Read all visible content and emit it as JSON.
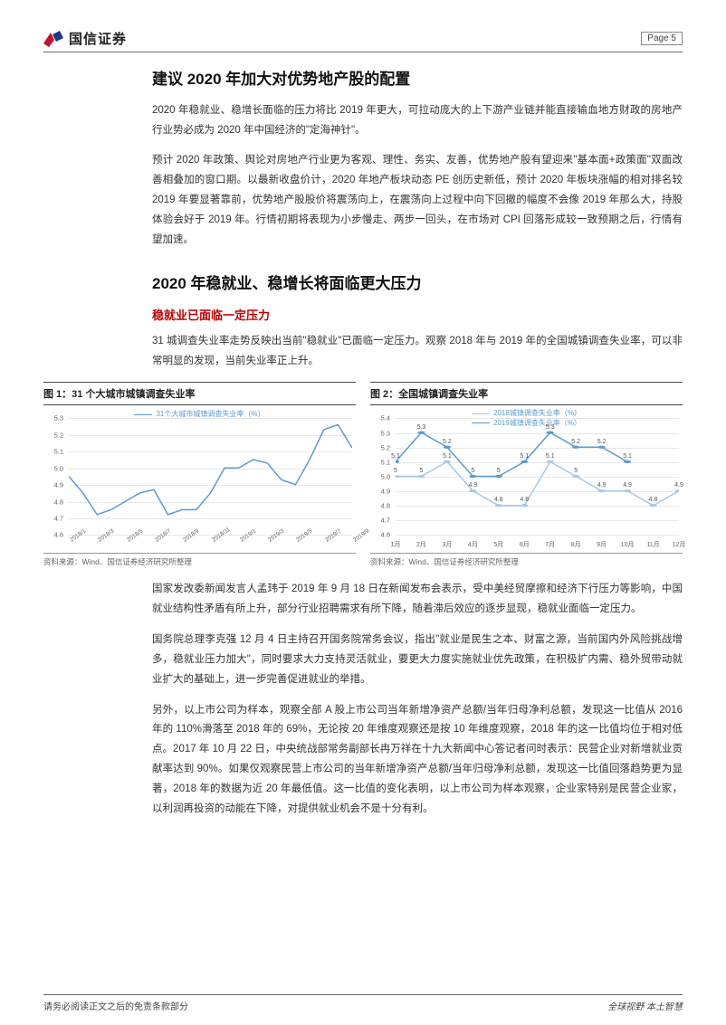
{
  "header": {
    "brand": "国信证券",
    "page_label": "Page  5"
  },
  "section1": {
    "title": "建议 2020 年加大对优势地产股的配置",
    "para1": "2020 年稳就业、稳增长面临的压力将比 2019 年更大，可拉动庞大的上下游产业链并能直接输血地方财政的房地产行业势必成为 2020 年中国经济的\"定海神针\"。",
    "para2": "预计 2020 年政策、舆论对房地产行业更为客观、理性、务实、友善，优势地产股有望迎来\"基本面+政策面\"双面改善相叠加的窗口期。以最新收盘价计，2020 年地产板块动态 PE 创历史新低，预计 2020 年板块涨幅的相对排名较 2019 年要显著靠前，优势地产股股价将震荡向上，在震荡向上过程中向下回撤的幅度不会像 2019 年那么大，持股体验会好于 2019 年。行情初期将表现为小步慢走、两步一回头，在市场对 CPI 回落形成较一致预期之后，行情有望加速。"
  },
  "section2": {
    "title": "2020 年稳就业、稳增长将面临更大压力",
    "subtitle": "稳就业已面临一定压力",
    "para1": "31 城调查失业率走势反映出当前\"稳就业\"已面临一定压力。观察 2018 年与 2019 年的全国城镇调查失业率，可以非常明显的发现，当前失业率正上升。"
  },
  "chart1": {
    "title": "图 1：31 个大城市城镇调查失业率",
    "legend": "31个大城市城镇调查失业率（%）",
    "source": "资料来源：Wind、国信证券经济研究所整理",
    "y_ticks": [
      "4.6",
      "4.7",
      "4.8",
      "4.9",
      "5.0",
      "5.1",
      "5.2",
      "5.3"
    ],
    "ylim": [
      4.6,
      5.3
    ],
    "x_labels": [
      "2018/1",
      "2018/3",
      "2018/5",
      "2018/7",
      "2018/9",
      "2018/11",
      "2019/1",
      "2019/3",
      "2019/5",
      "2019/7",
      "2019/9"
    ],
    "line_color": "#5b9bd5",
    "grid_color": "#e8e8e8",
    "values": [
      4.95,
      4.85,
      4.72,
      4.75,
      4.8,
      4.85,
      4.87,
      4.72,
      4.75,
      4.75,
      4.85,
      5.0,
      5.0,
      5.05,
      5.03,
      4.93,
      4.9,
      5.05,
      5.23,
      5.26,
      5.12
    ]
  },
  "chart2": {
    "title": "图 2：全国城镇调查失业率",
    "legend1": "2018城镇调查失业率（%）",
    "legend2": "2019城镇调查失业率（%）",
    "source": "资料来源：Wind、国信证券经济研究所整理",
    "y_ticks": [
      "4.6",
      "4.7",
      "4.8",
      "4.9",
      "5.0",
      "5.1",
      "5.2",
      "5.3",
      "5.4"
    ],
    "ylim": [
      4.6,
      5.4
    ],
    "x_labels": [
      "1月",
      "2月",
      "3月",
      "4月",
      "5月",
      "6月",
      "7月",
      "8月",
      "9月",
      "10月",
      "11月",
      "12月"
    ],
    "color_2018": "#a6c8e8",
    "color_2019": "#5b9bd5",
    "grid_color": "#e8e8e8",
    "series_2018": {
      "values": [
        5.0,
        5.0,
        5.1,
        4.9,
        4.8,
        4.8,
        5.1,
        5.0,
        4.9,
        4.9,
        4.8,
        4.9
      ],
      "labels": [
        "5",
        "5",
        "5.1",
        "4.9",
        "4.8",
        "4.8",
        "5.1",
        "5",
        "4.9",
        "4.9",
        "4.8",
        "4.9"
      ]
    },
    "series_2019": {
      "values": [
        5.1,
        5.3,
        5.2,
        5.0,
        5.0,
        5.1,
        5.3,
        5.2,
        5.2,
        5.1,
        null,
        null
      ],
      "labels": [
        "5.1",
        "5.3",
        "5.2",
        "5",
        "5",
        "5.1",
        "5.3",
        "5.2",
        "5.2",
        "5.1",
        "",
        ""
      ]
    }
  },
  "section3": {
    "para1": "国家发改委新闻发言人孟玮于 2019 年 9 月 18 日在新闻发布会表示，受中美经贸摩擦和经济下行压力等影响，中国就业结构性矛盾有所上升，部分行业招聘需求有所下降，随着滞后效应的逐步显现，稳就业面临一定压力。",
    "para2": "国务院总理李克强 12 月 4 日主持召开国务院常务会议，指出\"就业是民生之本、财富之源，当前国内外风险挑战增多，稳就业压力加大\"，同时要求大力支持灵活就业，要更大力度实施就业优先政策，在积极扩内需、稳外贸带动就业扩大的基础上，进一步完善促进就业的举措。",
    "para3": "另外，以上市公司为样本，观察全部 A 股上市公司当年新增净资产总额/当年归母净利总额，发现这一比值从 2016 年的 110%滑落至 2018 年的 69%，无论按 20 年维度观察还是按 10 年维度观察，2018 年的这一比值均位于相对低点。2017 年 10 月 22 日，中央统战部常务副部长冉万祥在十九大新闻中心答记者问时表示：民营企业对新增就业贡献率达到 90%。如果仅观察民营上市公司的当年新增净资产总额/当年归母净利总额，发现这一比值回落趋势更为显著，2018 年的数据为近 20 年最低值。这一比值的变化表明，以上市公司为样本观察，企业家特别是民营企业家，以利润再投资的动能在下降，对提供就业机会不是十分有利。"
  },
  "footer": {
    "left": "请务必阅读正文之后的免责条款部分",
    "right": "全球视野  本土智慧"
  }
}
